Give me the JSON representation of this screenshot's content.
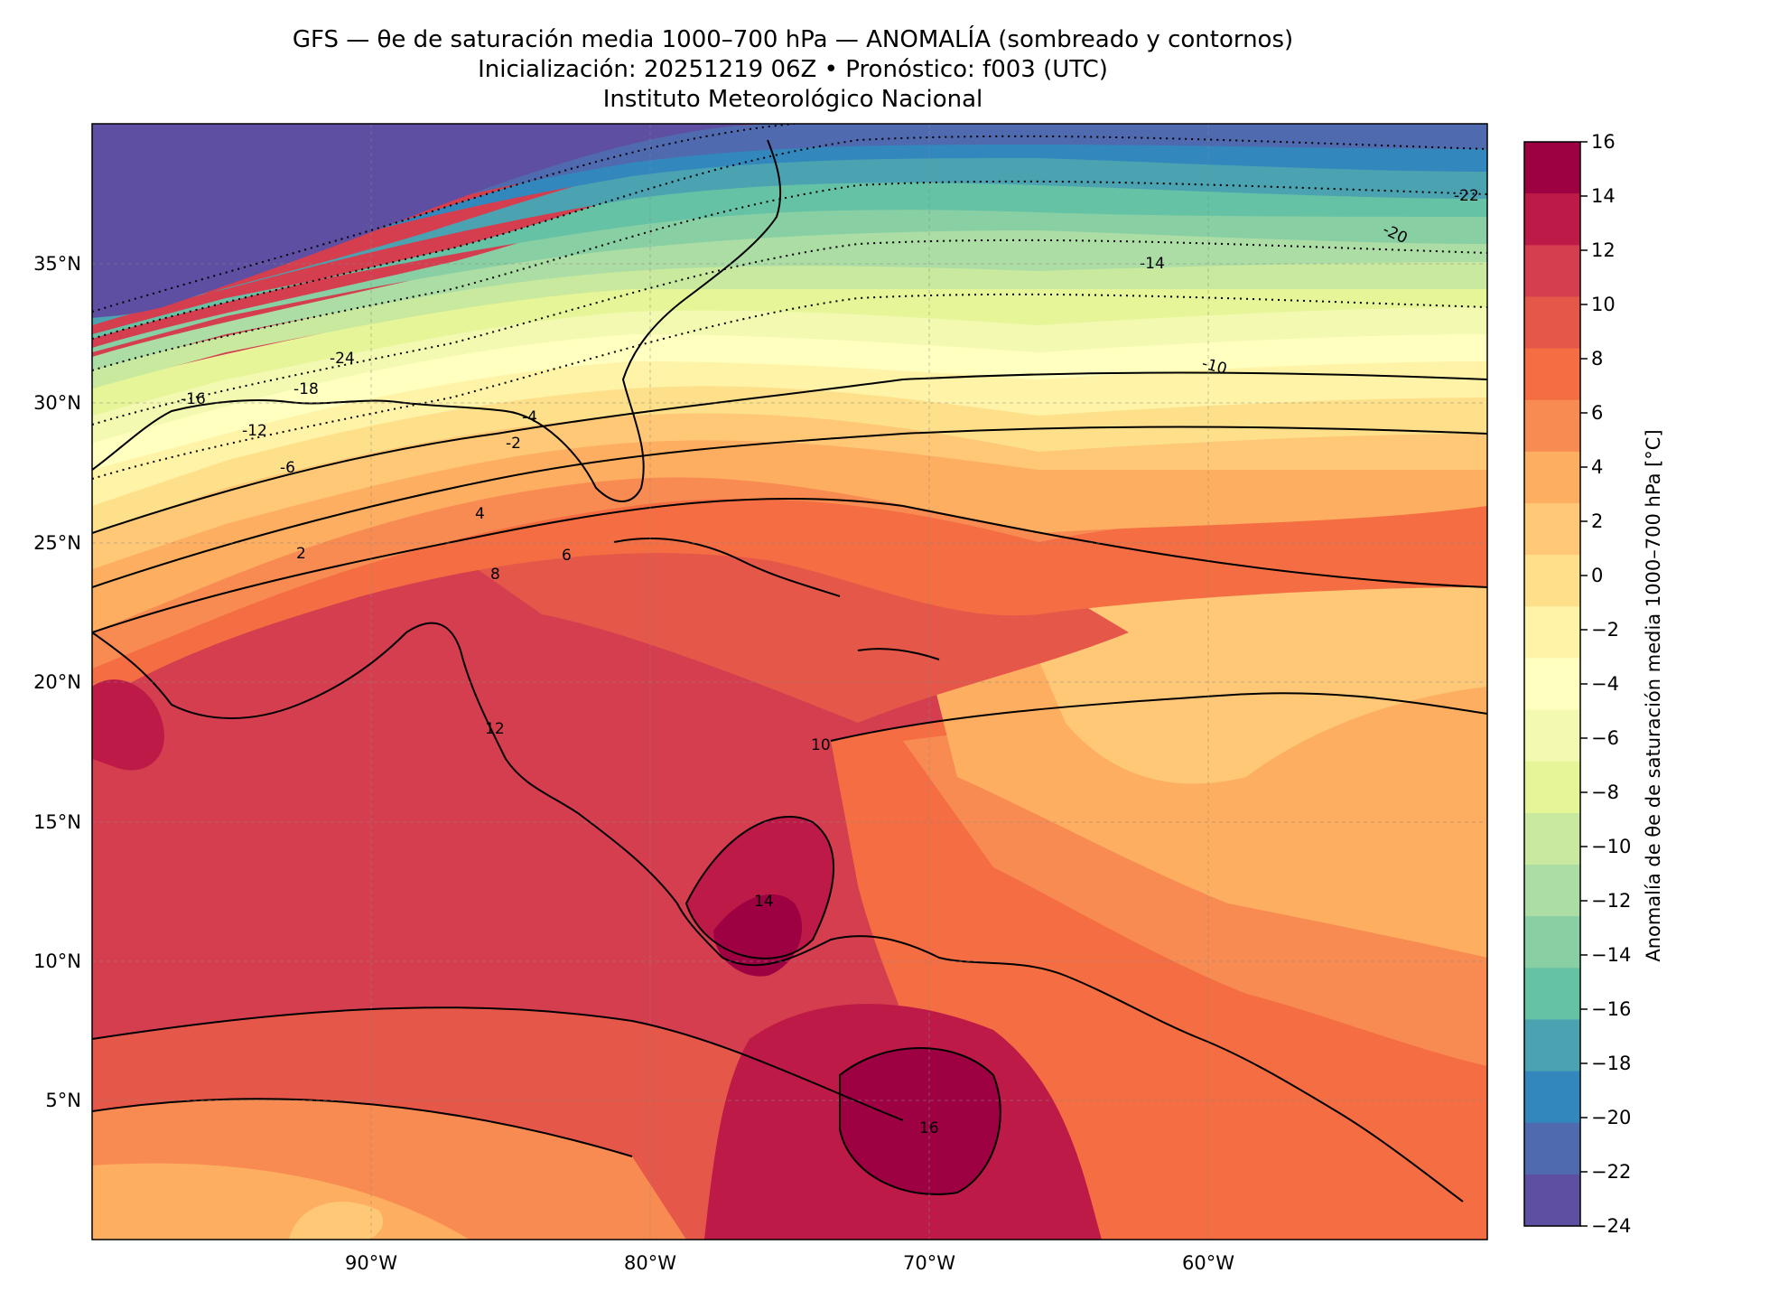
{
  "header": {
    "title_line1": "GFS — θe de saturación media 1000–700 hPa — ANOMALÍA (sombreado y contornos)",
    "title_line2": "Inicialización: 20251219 06Z   •   Pronóstico: f003 (UTC)",
    "title_line3": "Instituto Meteorológico Nacional"
  },
  "map": {
    "lat_ticks": [
      "35°N",
      "30°N",
      "25°N",
      "20°N",
      "15°N",
      "10°N",
      "5°N"
    ],
    "lon_ticks": [
      "90°W",
      "80°W",
      "70°W",
      "60°W"
    ],
    "extent": {
      "lon_min": -100,
      "lon_max": -50,
      "lat_min": 0,
      "lat_max": 40
    },
    "contour_labels": [
      "-24",
      "-22",
      "-20",
      "-18",
      "-16",
      "-14",
      "-12",
      "-10",
      "-6",
      "-4",
      "-2",
      "2",
      "4",
      "6",
      "8",
      "10",
      "12",
      "14",
      "16"
    ]
  },
  "colorbar": {
    "label": "Anomalía de θe de saturación media 1000–700 hPa [°C]",
    "ticks": [
      "16",
      "14",
      "12",
      "10",
      "8",
      "6",
      "4",
      "2",
      "0",
      "−2",
      "−4",
      "−6",
      "−8",
      "−10",
      "−12",
      "−14",
      "−16",
      "−18",
      "−20",
      "−22",
      "−24"
    ],
    "colors": [
      "#9e0142",
      "#be1a47",
      "#d53e4f",
      "#e55749",
      "#f46d43",
      "#f88b52",
      "#fdae61",
      "#fec877",
      "#fee08b",
      "#fff3a8",
      "#ffffbf",
      "#f3f9b0",
      "#e6f598",
      "#c9e99e",
      "#abdda4",
      "#88cfa4",
      "#66c2a5",
      "#4ba3b1",
      "#3288bd",
      "#4f6aaf",
      "#5e4fa2"
    ]
  }
}
